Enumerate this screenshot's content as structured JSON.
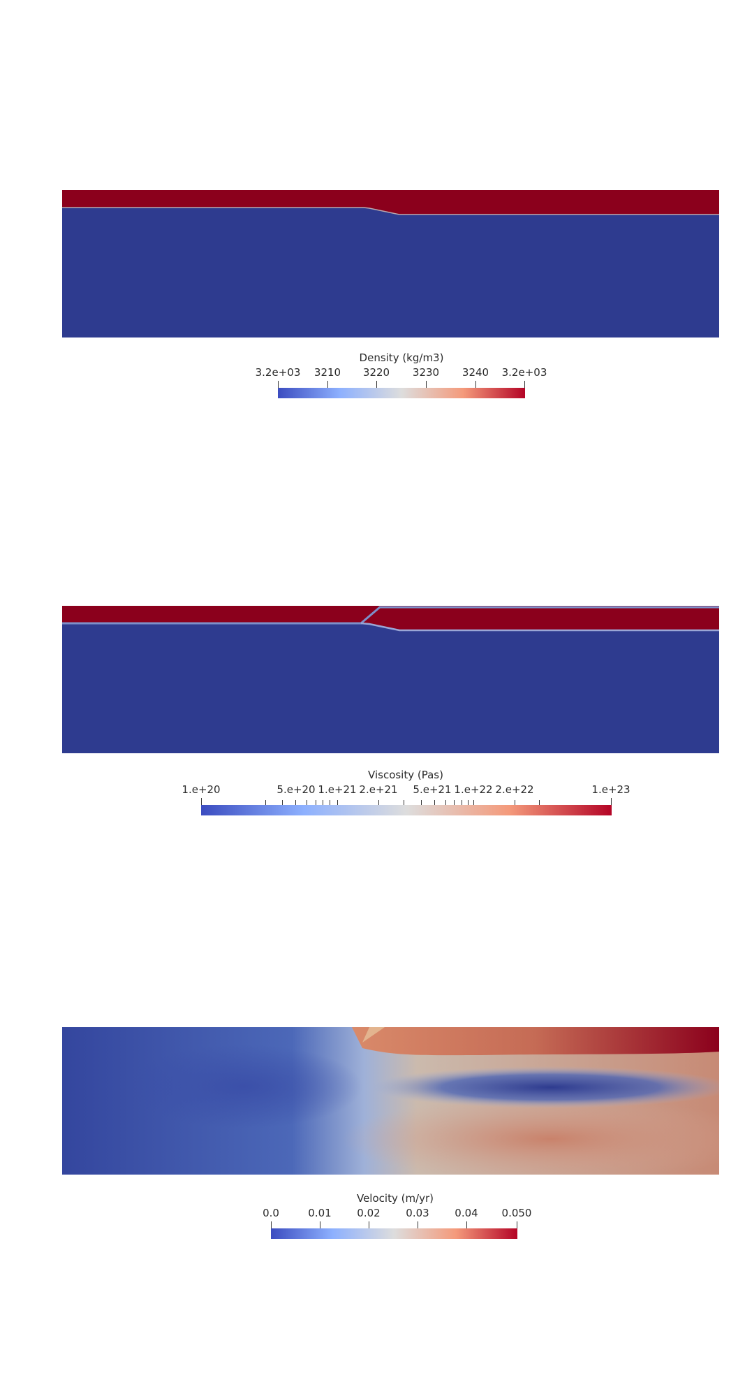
{
  "colors": {
    "deep_blue": "#2e3b8f",
    "deep_red": "#8b001c",
    "colormap": [
      "#3b4cc0",
      "#8db0fe",
      "#dddddd",
      "#f49a7b",
      "#b40426"
    ]
  },
  "legends": {
    "density": {
      "title": "Density (kg/m3)",
      "labels": [
        "3.2e+03",
        "3210",
        "3220",
        "3230",
        "3240",
        "3.2e+03"
      ]
    },
    "viscosity": {
      "title": "Viscosity (Pas)",
      "labels": [
        "1.e+20",
        "5.e+20",
        "1.e+21",
        "2.e+21",
        "5.e+21",
        "1.e+22",
        "2.e+22",
        "1.e+23"
      ]
    },
    "velocity": {
      "title": "Velocity (m/yr)",
      "labels": [
        "0.0",
        "0.01",
        "0.02",
        "0.03",
        "0.04",
        "0.050"
      ]
    }
  }
}
